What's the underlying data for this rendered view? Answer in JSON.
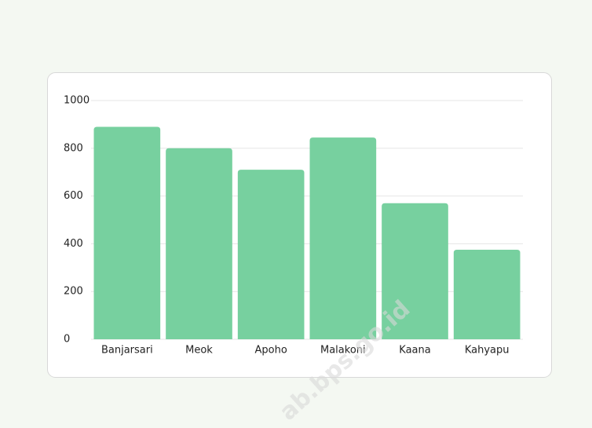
{
  "chart_data": {
    "type": "bar",
    "categories": [
      "Banjarsari",
      "Meok",
      "Apoho",
      "Malakoni",
      "Kaana",
      "Kahyapu"
    ],
    "values": [
      890,
      800,
      710,
      845,
      570,
      375
    ],
    "color": "#77d09f",
    "ylim": [
      0,
      1000
    ],
    "yticks": [
      0,
      200,
      400,
      600,
      800,
      1000
    ],
    "grid": true,
    "watermark": "ab.bps.go.id"
  }
}
